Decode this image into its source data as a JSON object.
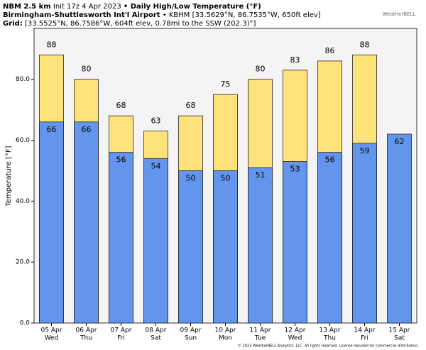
{
  "header": {
    "model": "NBM 2.5 km",
    "init": "Init 17z 4 Apr 2023",
    "product": "• Daily High/Low Temperature (°F)",
    "station": "Birmingham-Shuttlesworth Int'l Airport",
    "station_info": "• KBHM [33.5629°N, 86.7535°W, 650ft elev]",
    "grid_label": "Grid:",
    "grid_info": "[33.5525°N, 86.7586°W, 604ft elev, 0.78mi to the SSW (202.3)°]"
  },
  "logo": "WeatherBELL",
  "footer": "© 2023 WeatherBELL Analytics, LLC. All rights reserved. License required for commercial distribution.",
  "chart_data": {
    "type": "bar",
    "y_label": "Temperature [°F]",
    "categories": [
      "05 Apr",
      "06 Apr",
      "07 Apr",
      "08 Apr",
      "09 Apr",
      "10 Apr",
      "11 Apr",
      "12 Apr",
      "13 Apr",
      "14 Apr",
      "15 Apr"
    ],
    "weekdays": [
      "Wed",
      "Thu",
      "Fri",
      "Sat",
      "Sun",
      "Mon",
      "Tue",
      "Wed",
      "Thu",
      "Fri",
      "Sat"
    ],
    "series": [
      {
        "name": "High",
        "color": "#ffe27a",
        "values": [
          88,
          80,
          68,
          63,
          68,
          75,
          80,
          83,
          86,
          88,
          null
        ]
      },
      {
        "name": "Low",
        "color": "#6495ed",
        "values": [
          66,
          66,
          56,
          54,
          50,
          50,
          51,
          53,
          56,
          59,
          62
        ]
      }
    ],
    "ylim": [
      0,
      96.7
    ],
    "yticks": [
      {
        "value": 0,
        "label": "0.0"
      },
      {
        "value": 20,
        "label": "20.0"
      },
      {
        "value": 40,
        "label": "40.0"
      },
      {
        "value": 60,
        "label": "60.0"
      },
      {
        "value": 80,
        "label": "80.0"
      }
    ]
  }
}
